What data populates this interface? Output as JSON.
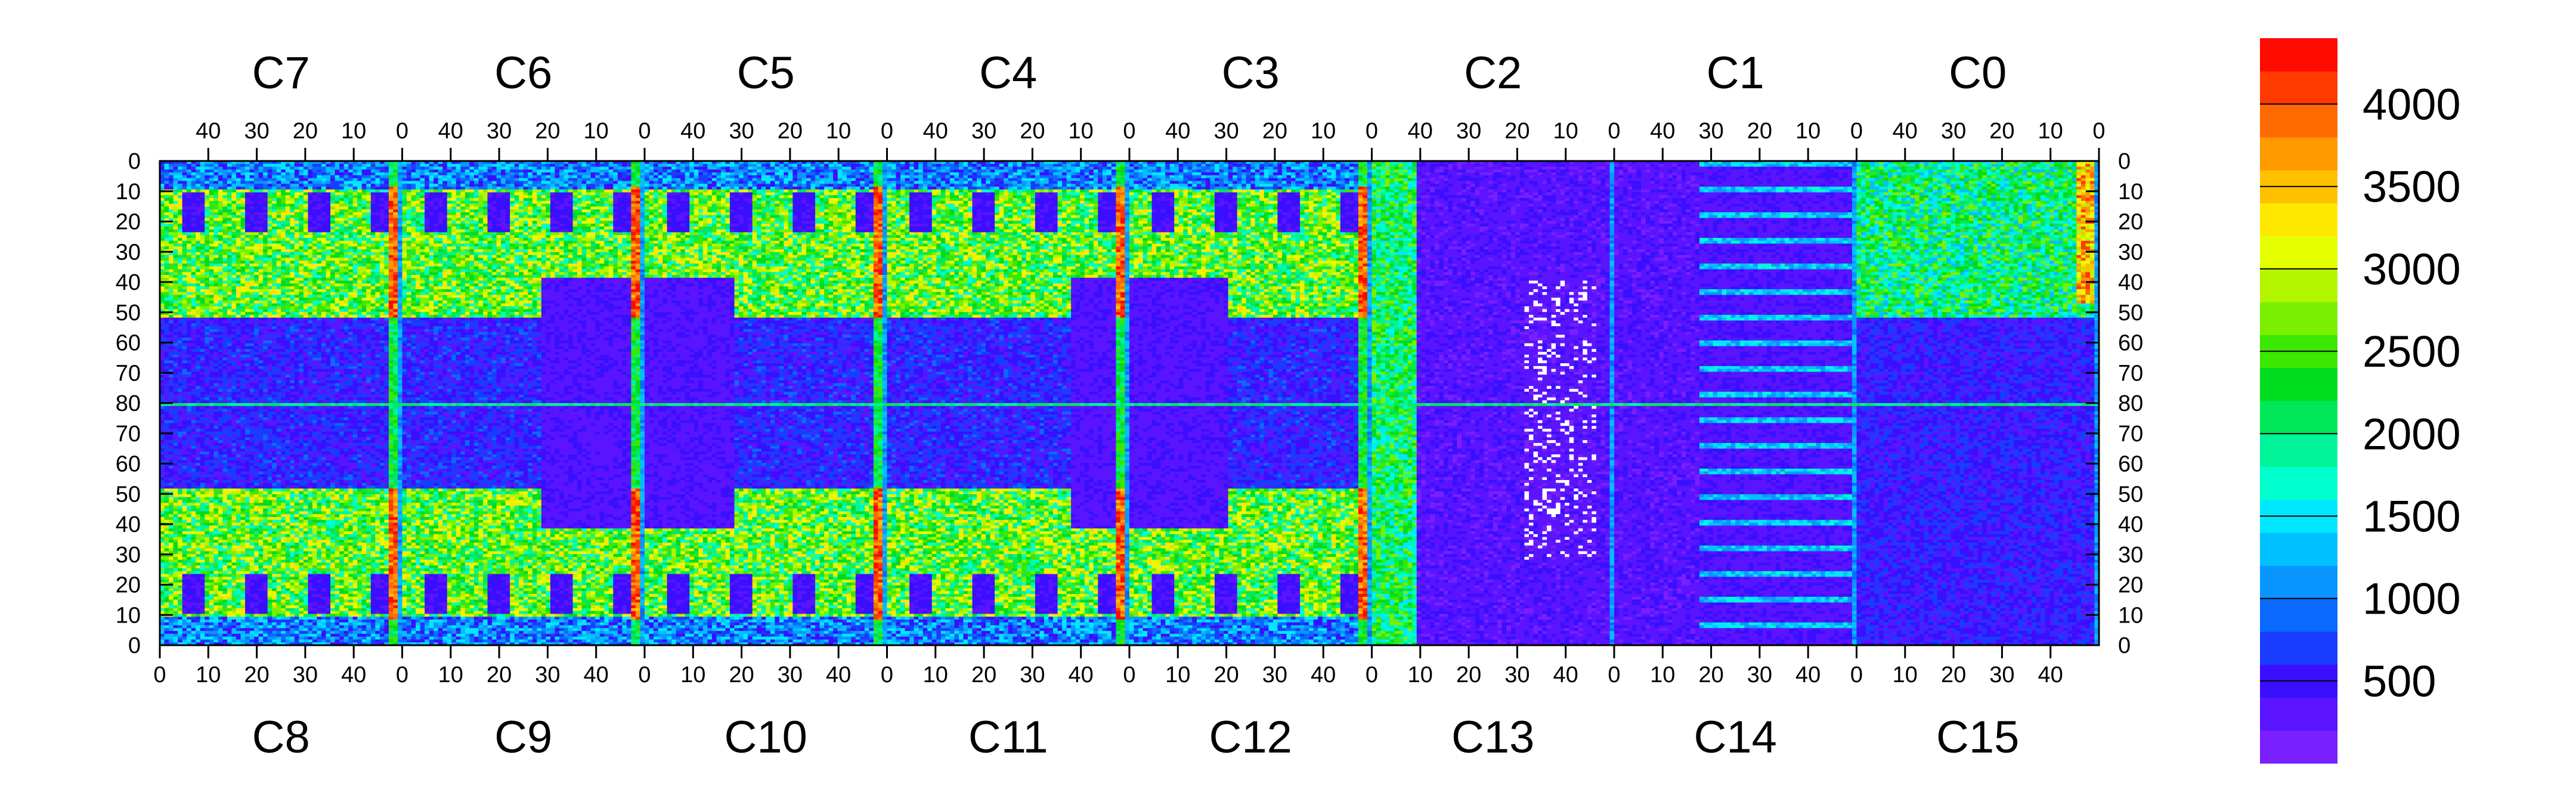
{
  "chart_data": {
    "type": "heatmap",
    "title": "",
    "top_chip_labels": [
      "C7",
      "C6",
      "C5",
      "C4",
      "C3",
      "C2",
      "C1",
      "C0"
    ],
    "bottom_chip_labels": [
      "C8",
      "C9",
      "C10",
      "C11",
      "C12",
      "C13",
      "C14",
      "C15"
    ],
    "top_x_ticks": [
      "40",
      "30",
      "20",
      "10",
      "0"
    ],
    "bottom_x_ticks": [
      "0",
      "10",
      "20",
      "30",
      "40"
    ],
    "y_ticks": [
      "0",
      "10",
      "20",
      "30",
      "40",
      "50",
      "60",
      "70",
      "80",
      "70",
      "60",
      "50",
      "40",
      "30",
      "20",
      "10",
      "0"
    ],
    "colorbar": {
      "min": 0,
      "max": 4400,
      "tick_labels": [
        "500",
        "1000",
        "1500",
        "2000",
        "2500",
        "3000",
        "3500",
        "4000"
      ],
      "tick_values": [
        500,
        1000,
        1500,
        2000,
        2500,
        3000,
        3500,
        4000
      ],
      "palette": [
        "#7a1fff",
        "#5a14ff",
        "#3a0fff",
        "#1a3cff",
        "#0a6aff",
        "#0a96ff",
        "#00c0ff",
        "#00e8ff",
        "#00ffcc",
        "#00f59a",
        "#00e85a",
        "#00dc1e",
        "#3ae800",
        "#7af000",
        "#b4f500",
        "#e4ff00",
        "#ffe800",
        "#ffc000",
        "#ff9a00",
        "#ff6a00",
        "#ff3a00",
        "#ff0a00"
      ]
    },
    "features": {
      "hot_columns": "column 0 of each upper/lower chip pair (C6/C9, C5/C10, C4/C11, C3/C12, C2/C13) shows values around 3500-4400",
      "dead_region": "chips C13/C2 and C14/C1 centre area mostly near 0-500 with scattered white (empty) pixels",
      "middle_band": "rows 70-80 show low values (~500) across most chips with a bright row at 80"
    }
  }
}
